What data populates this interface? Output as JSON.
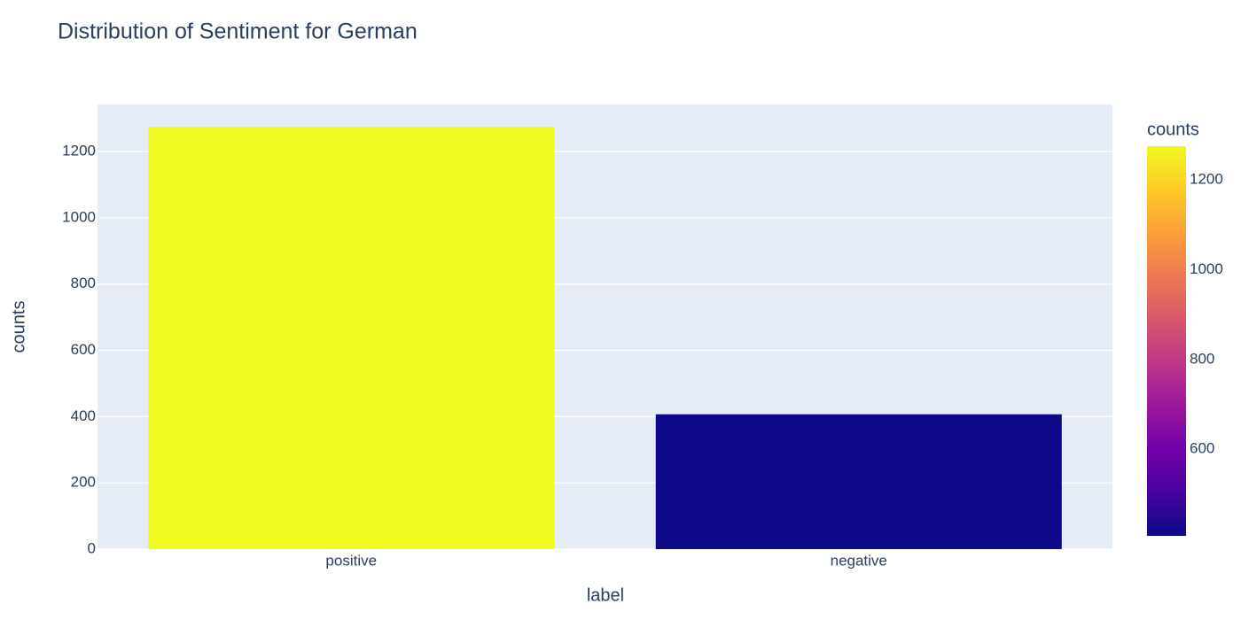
{
  "chart_data": {
    "type": "bar",
    "title": "Distribution of Sentiment for German",
    "x_label": "label",
    "y_label": "counts",
    "categories": [
      "positive",
      "negative"
    ],
    "values": [
      1275,
      407
    ],
    "ylim": [
      0,
      1342
    ],
    "yticks": [
      0,
      200,
      400,
      600,
      800,
      1000,
      1200
    ],
    "grid": true,
    "colorscale": [
      "#0d0887",
      "#46039f",
      "#7201a8",
      "#9c179e",
      "#bd3786",
      "#d8576b",
      "#ed7953",
      "#fb9f3a",
      "#fdca26",
      "#f0f921"
    ],
    "colorbar": {
      "title": "counts",
      "ticks": [
        600,
        800,
        1000,
        1200
      ]
    }
  }
}
